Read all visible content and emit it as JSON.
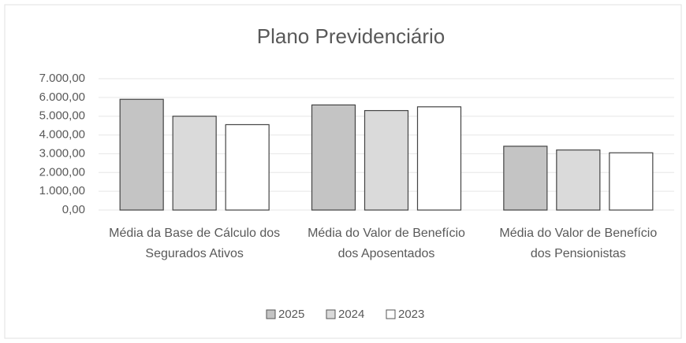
{
  "chart_data": {
    "type": "bar",
    "title": "Plano Previdenciário",
    "categories": [
      "Média da Base de Cálculo dos Segurados Ativos",
      "Média do Valor de Benefício dos Aposentados",
      "Média do Valor de Benefício dos Pensionistas"
    ],
    "series": [
      {
        "name": "2025",
        "color": "#c4c4c4",
        "values": [
          5900,
          5600,
          3400
        ]
      },
      {
        "name": "2024",
        "color": "#dadada",
        "values": [
          5000,
          5300,
          3200
        ]
      },
      {
        "name": "2023",
        "color": "#ffffff",
        "values": [
          4550,
          5500,
          3050
        ]
      }
    ],
    "ylim": [
      0,
      7000
    ],
    "yticks": [
      {
        "value": 0,
        "label": "0,00"
      },
      {
        "value": 1000,
        "label": "1.000,00"
      },
      {
        "value": 2000,
        "label": "2.000,00"
      },
      {
        "value": 3000,
        "label": "3.000,00"
      },
      {
        "value": 4000,
        "label": "4.000,00"
      },
      {
        "value": 5000,
        "label": "5.000,00"
      },
      {
        "value": 6000,
        "label": "6.000,00"
      },
      {
        "value": 7000,
        "label": "7.000,00"
      }
    ],
    "grid": true,
    "legend": "bottom"
  }
}
